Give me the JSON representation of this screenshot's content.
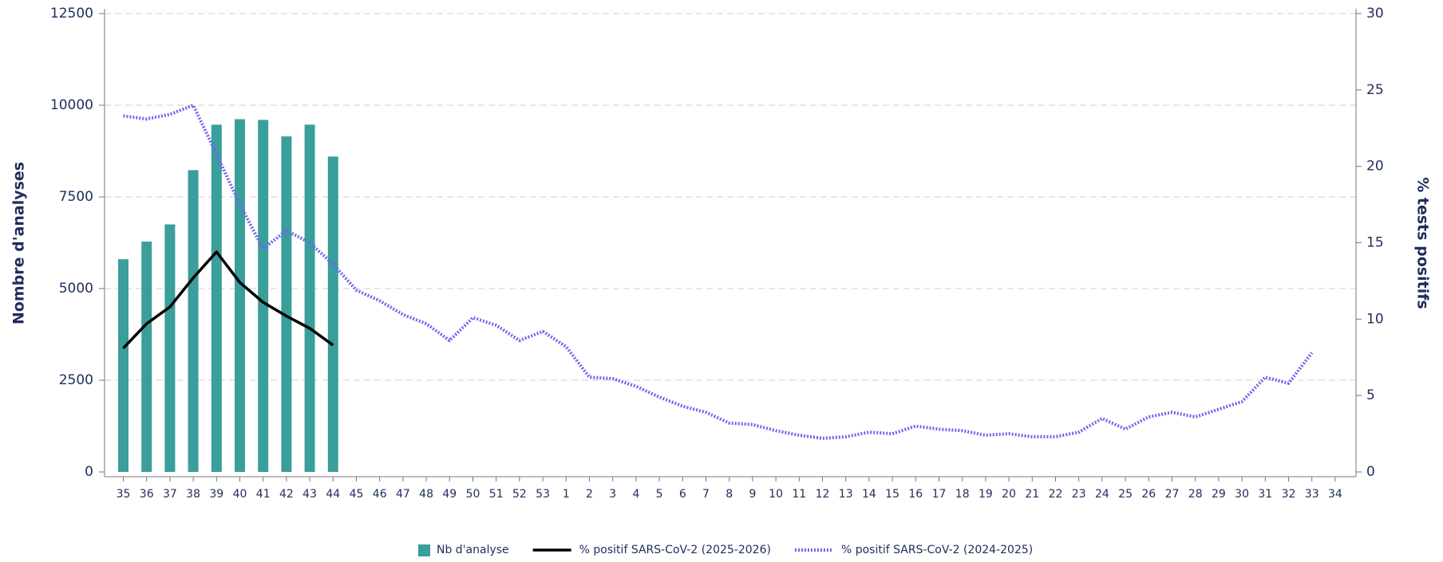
{
  "chart_data": {
    "type": "bar_line",
    "categories": [
      "35",
      "36",
      "37",
      "38",
      "39",
      "40",
      "41",
      "42",
      "43",
      "44",
      "45",
      "46",
      "47",
      "48",
      "49",
      "50",
      "51",
      "52",
      "53",
      "1",
      "2",
      "3",
      "4",
      "5",
      "6",
      "7",
      "8",
      "9",
      "10",
      "11",
      "12",
      "13",
      "14",
      "15",
      "16",
      "17",
      "18",
      "19",
      "20",
      "21",
      "22",
      "23",
      "24",
      "25",
      "26",
      "27",
      "28",
      "29",
      "30",
      "31",
      "32",
      "33",
      "34"
    ],
    "y_label": "Nombre d'analyses",
    "y2_label": "% tests positifs",
    "ylim": [
      0,
      12500
    ],
    "yticks": [
      0,
      2500,
      5000,
      7500,
      10000,
      12500
    ],
    "y2lim": [
      0,
      30
    ],
    "y2ticks": [
      0,
      5,
      10,
      15,
      20,
      25,
      30
    ],
    "grid": true,
    "legend": "bottom",
    "series": [
      {
        "name": "Nb d'analyse",
        "type": "bar",
        "color": "#3a9e9a",
        "values": [
          5800,
          6280,
          6750,
          8230,
          9470,
          9620,
          9600,
          9150,
          9470,
          8600,
          null,
          null,
          null,
          null,
          null,
          null,
          null,
          null,
          null,
          null,
          null,
          null,
          null,
          null,
          null,
          null,
          null,
          null,
          null,
          null,
          null,
          null,
          null,
          null,
          null,
          null,
          null,
          null,
          null,
          null,
          null,
          null,
          null,
          null,
          null,
          null,
          null,
          null,
          null,
          null,
          null,
          null,
          null
        ]
      },
      {
        "name": "% positif SARS-CoV-2 (2025-2026)",
        "type": "line",
        "axis": "y2",
        "color": "#000000",
        "dash": "solid",
        "values": [
          8.1,
          9.7,
          10.8,
          12.7,
          14.4,
          12.4,
          11.1,
          10.2,
          9.4,
          8.3,
          null,
          null,
          null,
          null,
          null,
          null,
          null,
          null,
          null,
          null,
          null,
          null,
          null,
          null,
          null,
          null,
          null,
          null,
          null,
          null,
          null,
          null,
          null,
          null,
          null,
          null,
          null,
          null,
          null,
          null,
          null,
          null,
          null,
          null,
          null,
          null,
          null,
          null,
          null,
          null,
          null,
          null,
          null
        ]
      },
      {
        "name": "% positif SARS-CoV-2 (2024-2025)",
        "type": "line",
        "axis": "y2",
        "color": "#6b66f0",
        "dash": "dotted",
        "values": [
          23.3,
          23.1,
          23.4,
          24.0,
          20.8,
          17.5,
          14.6,
          15.8,
          15.0,
          13.6,
          11.9,
          11.2,
          10.3,
          9.7,
          8.6,
          10.1,
          9.6,
          8.6,
          9.2,
          8.2,
          6.2,
          6.1,
          5.6,
          4.9,
          4.3,
          3.9,
          3.2,
          3.1,
          2.7,
          2.4,
          2.2,
          2.3,
          2.6,
          2.5,
          3.0,
          2.8,
          2.7,
          2.4,
          2.5,
          2.3,
          2.3,
          2.6,
          3.5,
          2.8,
          3.6,
          3.9,
          3.6,
          4.1,
          4.6,
          6.2,
          5.8,
          7.8,
          null
        ]
      }
    ]
  }
}
